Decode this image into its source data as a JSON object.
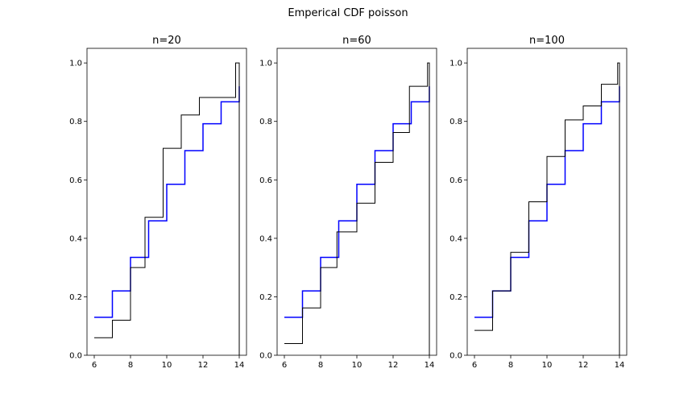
{
  "chart_data": {
    "type": "line",
    "suptitle": "Emperical CDF poisson",
    "colors": {
      "empirical": "#000000",
      "theoretical": "#0000ff"
    },
    "grid": false,
    "legend": "none",
    "xlim": [
      5.6,
      14.4
    ],
    "ylim": [
      0,
      1.05
    ],
    "xticks": [
      6,
      8,
      10,
      12,
      14
    ],
    "yticks": [
      0.0,
      0.2,
      0.4,
      0.6,
      0.8,
      1.0
    ],
    "xtick_labels": [
      "6",
      "8",
      "10",
      "12",
      "14"
    ],
    "ytick_labels": [
      "0.0",
      "0.2",
      "0.4",
      "0.6",
      "0.8",
      "1.0"
    ],
    "theoretical_steps": {
      "x": [
        6,
        7,
        8,
        9,
        10,
        11,
        12,
        13,
        14
      ],
      "y": [
        0.13,
        0.22,
        0.335,
        0.46,
        0.585,
        0.7,
        0.792,
        0.867,
        0.92
      ]
    },
    "panels": [
      {
        "title": "n=20",
        "empirical_steps": {
          "x": [
            6,
            7,
            8,
            8.8,
            9.8,
            10.8,
            11.8,
            13.8,
            14
          ],
          "y": [
            0.06,
            0.12,
            0.3,
            0.472,
            0.708,
            0.822,
            0.882,
            1.0,
            0.0
          ]
        }
      },
      {
        "title": "n=60",
        "empirical_steps": {
          "x": [
            6,
            7,
            8,
            8.9,
            10,
            11,
            12,
            12.9,
            13.9,
            14
          ],
          "y": [
            0.04,
            0.162,
            0.3,
            0.422,
            0.52,
            0.66,
            0.762,
            0.92,
            1.0,
            0.0
          ]
        }
      },
      {
        "title": "n=100",
        "empirical_steps": {
          "x": [
            6,
            7,
            8,
            9,
            10,
            11,
            12,
            13,
            13.9,
            14
          ],
          "y": [
            0.085,
            0.22,
            0.352,
            0.525,
            0.68,
            0.805,
            0.853,
            0.927,
            1.0,
            0.0
          ]
        }
      }
    ]
  }
}
